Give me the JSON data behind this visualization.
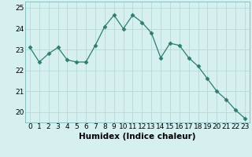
{
  "x": [
    0,
    1,
    2,
    3,
    4,
    5,
    6,
    7,
    8,
    9,
    10,
    11,
    12,
    13,
    14,
    15,
    16,
    17,
    18,
    19,
    20,
    21,
    22,
    23
  ],
  "y": [
    23.1,
    22.4,
    22.8,
    23.1,
    22.5,
    22.4,
    22.4,
    23.2,
    24.1,
    24.65,
    24.0,
    24.65,
    24.3,
    23.8,
    22.6,
    23.3,
    23.2,
    22.6,
    22.2,
    21.6,
    21.0,
    20.6,
    20.1,
    19.7
  ],
  "line_color": "#2e7d6e",
  "marker": "D",
  "marker_size": 2.5,
  "bg_color": "#d6f0f0",
  "grid_color": "#b8d8d8",
  "xlabel": "Humidex (Indice chaleur)",
  "ylim": [
    19.5,
    25.3
  ],
  "yticks": [
    20,
    21,
    22,
    23,
    24,
    25
  ],
  "xticks": [
    0,
    1,
    2,
    3,
    4,
    5,
    6,
    7,
    8,
    9,
    10,
    11,
    12,
    13,
    14,
    15,
    16,
    17,
    18,
    19,
    20,
    21,
    22,
    23
  ],
  "xlabel_fontsize": 7.5,
  "tick_fontsize": 6.5
}
